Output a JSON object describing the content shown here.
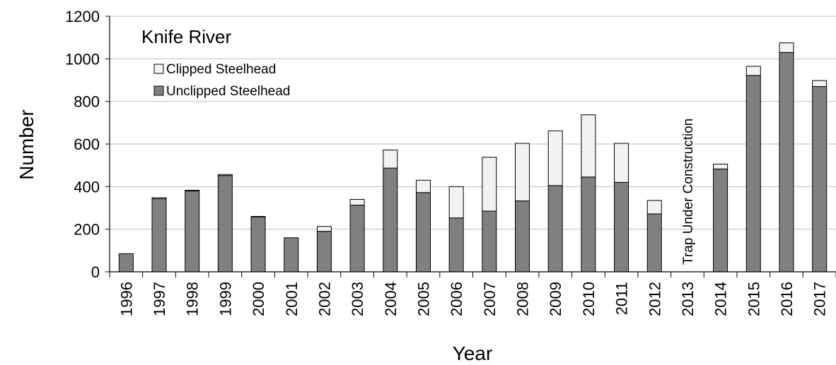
{
  "chart_data": {
    "type": "bar",
    "stacked": true,
    "title": "Knife River",
    "xlabel": "Year",
    "ylabel": "Number",
    "ylim": [
      0,
      1200
    ],
    "yticks": [
      0,
      200,
      400,
      600,
      800,
      1000,
      1200
    ],
    "grid": true,
    "legend": "top-left",
    "categories": [
      "1996",
      "1997",
      "1998",
      "1999",
      "2000",
      "2001",
      "2002",
      "2003",
      "2004",
      "2005",
      "2006",
      "2007",
      "2008",
      "2009",
      "2010",
      "2011",
      "2012",
      "2013",
      "2014",
      "2015",
      "2016",
      "2017"
    ],
    "series": [
      {
        "name": "Unclipped Steelhead",
        "color": "#808080",
        "values": [
          85,
          343,
          380,
          452,
          258,
          160,
          190,
          313,
          487,
          372,
          253,
          285,
          333,
          405,
          445,
          420,
          272,
          null,
          483,
          922,
          1030,
          870
        ]
      },
      {
        "name": "Clipped Steelhead",
        "color": "#f2f2f2",
        "values": [
          0,
          5,
          3,
          5,
          2,
          0,
          23,
          27,
          85,
          58,
          147,
          253,
          270,
          257,
          292,
          183,
          63,
          null,
          23,
          43,
          45,
          28
        ]
      }
    ],
    "annotations": [
      {
        "text": "Trap Under Construction",
        "category": "2013"
      }
    ]
  }
}
